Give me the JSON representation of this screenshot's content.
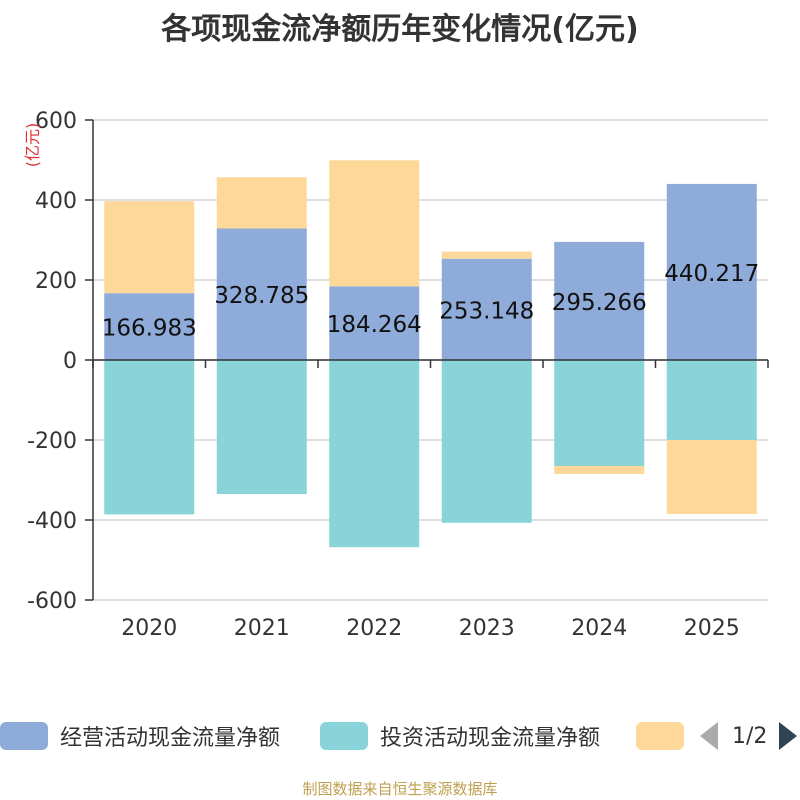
{
  "chart_data": {
    "type": "bar",
    "stacked": true,
    "title": "各项现金流净额历年变化情况(亿元)",
    "ylabel": "(亿元)",
    "xlabel": "",
    "ylim": [
      -600,
      600
    ],
    "yticks": [
      600,
      400,
      200,
      0,
      -200,
      -400,
      -600
    ],
    "categories": [
      "2020",
      "2021",
      "2022",
      "2023",
      "2024",
      "2025"
    ],
    "series": [
      {
        "name": "经营活动现金流量净额",
        "color": "#8eabd9",
        "values": [
          166.983,
          328.785,
          184.264,
          253.148,
          295.266,
          440.217
        ],
        "data_labels": [
          "166.983",
          "328.785",
          "184.264",
          "253.148",
          "295.266",
          "440.217"
        ]
      },
      {
        "name": "投资活动现金流量净额",
        "color": "#88d4d8",
        "values": [
          -386,
          -335,
          -468,
          -407,
          -265,
          -200
        ]
      },
      {
        "name": "",
        "color": "#fdd899",
        "values": [
          230,
          128,
          315,
          18,
          -20,
          -185
        ]
      }
    ],
    "legend_position": "bottom",
    "legend_page": "1/2"
  },
  "footer": "制图数据来自恒生聚源数据库"
}
